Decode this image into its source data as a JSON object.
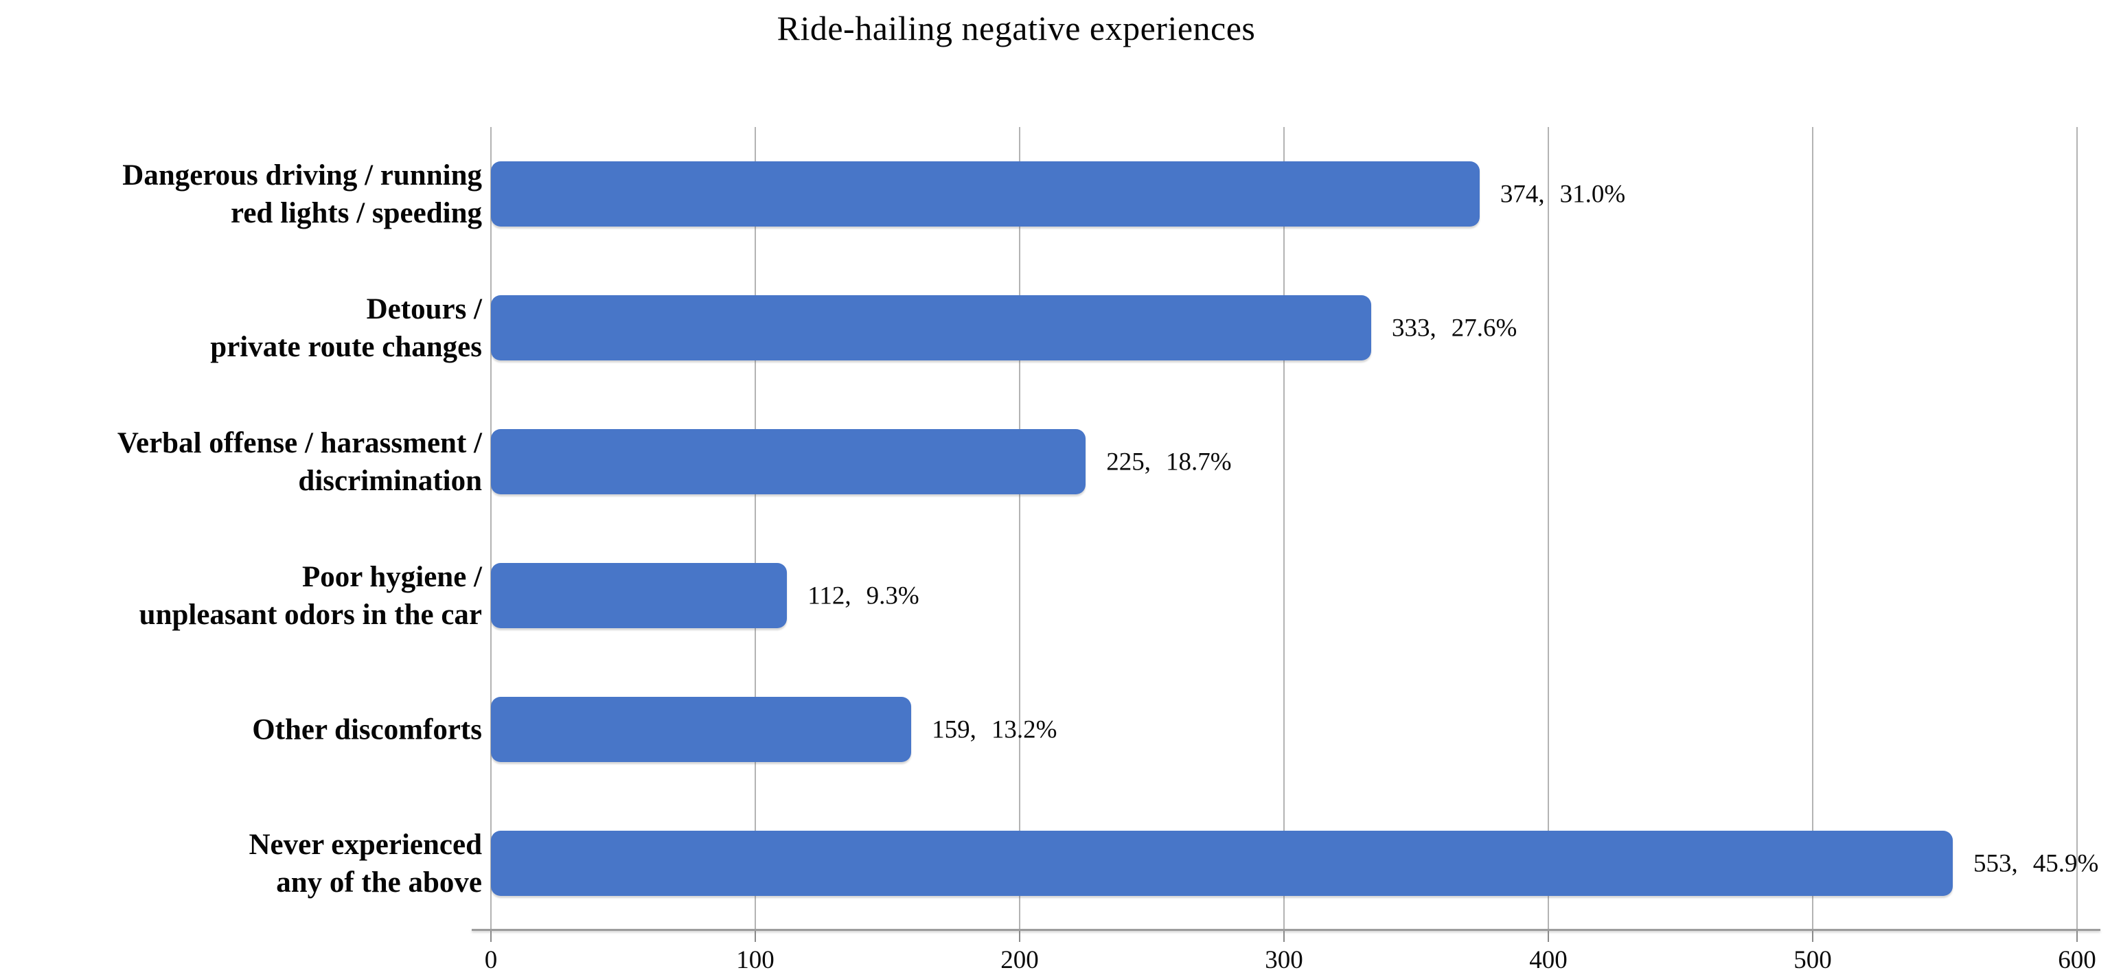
{
  "chart_data": {
    "type": "bar",
    "orientation": "horizontal",
    "title": "Ride-hailing negative experiences",
    "xlabel": "",
    "ylabel": "",
    "xlim": [
      0,
      600
    ],
    "x_ticks": [
      "0",
      "100",
      "200",
      "300",
      "400",
      "500",
      "600"
    ],
    "grid": "vertical gridlines every 100, light gray",
    "legend": "none",
    "bar_color": "#4876c8",
    "gridline_color": "#b3b3b3",
    "axis_line_color": "#9c9c9c",
    "categories": [
      "Dangerous driving / running red lights / speeding",
      "Detours / private route changes",
      "Verbal offense / harassment / discrimination",
      "Poor hygiene / unpleasant odors in the car",
      "Other discomforts",
      "Never experienced any of the above"
    ],
    "values": [
      374,
      333,
      225,
      112,
      159,
      553
    ],
    "percents": [
      "31.0%",
      "27.6%",
      "18.7%",
      "9.3%",
      "13.2%",
      "45.9%"
    ],
    "series": [
      {
        "category_lines": [
          "Dangerous driving / running",
          "red lights / speeding"
        ],
        "value": 374,
        "label_value": "374,",
        "label_percent": "31.0%"
      },
      {
        "category_lines": [
          "Detours /",
          "private route changes"
        ],
        "value": 333,
        "label_value": "333,",
        "label_percent": "27.6%"
      },
      {
        "category_lines": [
          "Verbal offense / harassment /",
          "discrimination"
        ],
        "value": 225,
        "label_value": "225,",
        "label_percent": "18.7%"
      },
      {
        "category_lines": [
          "Poor hygiene /",
          "unpleasant odors in the car"
        ],
        "value": 112,
        "label_value": "112,",
        "label_percent": "9.3%"
      },
      {
        "category_lines": [
          "Other discomforts"
        ],
        "value": 159,
        "label_value": "159,",
        "label_percent": "13.2%"
      },
      {
        "category_lines": [
          "Never experienced",
          "any of the above"
        ],
        "value": 553,
        "label_value": "553,",
        "label_percent": "45.9%"
      }
    ]
  }
}
